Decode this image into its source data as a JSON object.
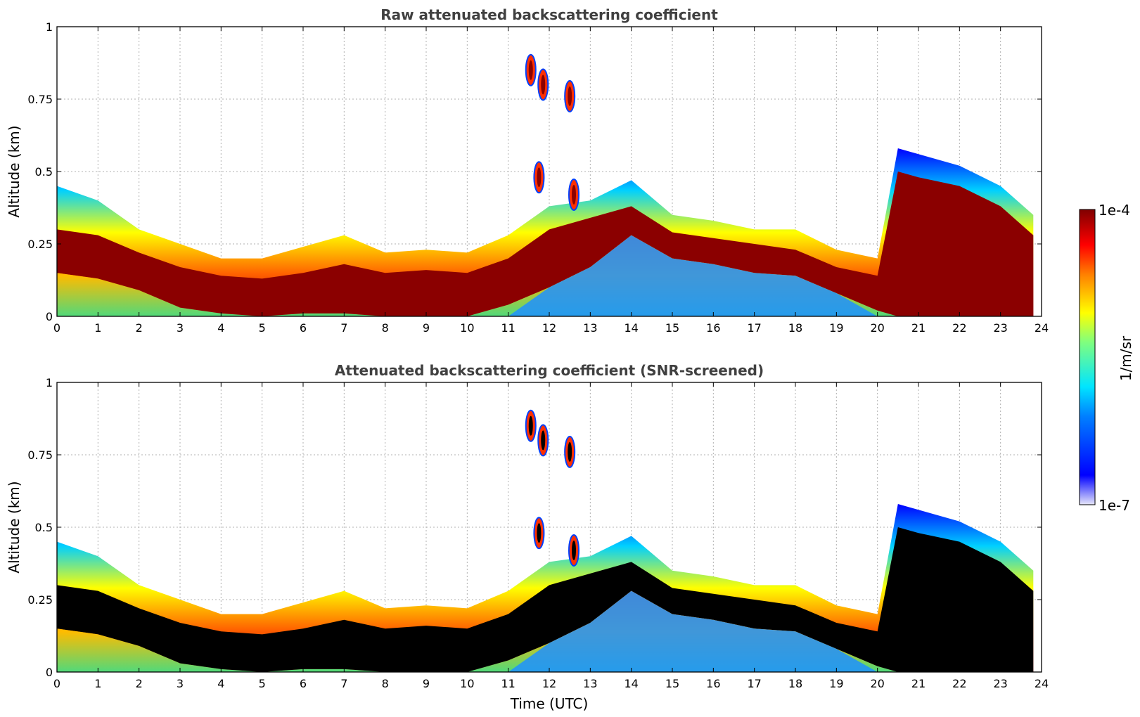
{
  "chart_data": [
    {
      "type": "heatmap",
      "title": "Raw attenuated backscattering coefficient",
      "xlabel": "",
      "ylabel": "Altitude (km)",
      "xlim": [
        0,
        24
      ],
      "ylim": [
        0,
        1
      ],
      "xticks": [
        "0",
        "1",
        "2",
        "3",
        "4",
        "5",
        "6",
        "7",
        "8",
        "9",
        "10",
        "11",
        "12",
        "13",
        "14",
        "15",
        "16",
        "17",
        "18",
        "19",
        "20",
        "21",
        "22",
        "23",
        "24"
      ],
      "yticks": [
        "0",
        "0.25",
        "0.5",
        "0.75",
        "1"
      ],
      "grid": true,
      "layers": {
        "time": [
          0,
          1,
          2,
          3,
          4,
          5,
          6,
          7,
          8,
          9,
          10,
          11,
          12,
          13,
          14,
          15,
          16,
          17,
          18,
          19,
          20,
          20.5,
          21,
          22,
          23,
          23.8
        ],
        "top_km": [
          0.45,
          0.4,
          0.3,
          0.25,
          0.2,
          0.2,
          0.24,
          0.28,
          0.22,
          0.23,
          0.22,
          0.28,
          0.38,
          0.4,
          0.47,
          0.35,
          0.33,
          0.3,
          0.3,
          0.23,
          0.2,
          0.58,
          0.56,
          0.52,
          0.45,
          0.35
        ],
        "core_top_km": [
          0.3,
          0.28,
          0.22,
          0.17,
          0.14,
          0.13,
          0.15,
          0.18,
          0.15,
          0.16,
          0.15,
          0.2,
          0.3,
          0.34,
          0.38,
          0.29,
          0.27,
          0.25,
          0.23,
          0.17,
          0.14,
          0.5,
          0.48,
          0.45,
          0.38,
          0.28
        ],
        "core_bottom_km": [
          0.15,
          0.13,
          0.09,
          0.03,
          0.01,
          0.0,
          0.01,
          0.01,
          0.0,
          0.0,
          0.0,
          0.04,
          0.1,
          0.17,
          0.28,
          0.2,
          0.18,
          0.15,
          0.14,
          0.08,
          0.02,
          0.0,
          0.0,
          0.0,
          0.0,
          0.0
        ]
      },
      "cloud_patches": [
        {
          "time": 11.55,
          "altitude_km": 0.85
        },
        {
          "time": 11.85,
          "altitude_km": 0.8
        },
        {
          "time": 12.5,
          "altitude_km": 0.76
        },
        {
          "time": 11.75,
          "altitude_km": 0.48
        },
        {
          "time": 12.6,
          "altitude_km": 0.42
        }
      ]
    },
    {
      "type": "heatmap",
      "title": "Attenuated backscattering coefficient (SNR-screened)",
      "xlabel": "Time (UTC)",
      "ylabel": "Altitude (km)",
      "xlim": [
        0,
        24
      ],
      "ylim": [
        0,
        1
      ],
      "xticks": [
        "0",
        "1",
        "2",
        "3",
        "4",
        "5",
        "6",
        "7",
        "8",
        "9",
        "10",
        "11",
        "12",
        "13",
        "14",
        "15",
        "16",
        "17",
        "18",
        "19",
        "20",
        "21",
        "22",
        "23",
        "24"
      ],
      "yticks": [
        "0",
        "0.25",
        "0.5",
        "0.75",
        "1"
      ],
      "grid": true,
      "saturated_color": "#000000"
    }
  ],
  "colorbar": {
    "label": "1/m/sr",
    "max_label": "1e-4",
    "min_label": "1e-7",
    "colors": [
      "#e6e6fa",
      "#0000ff",
      "#00e5ff",
      "#7fff7f",
      "#ffff00",
      "#ff7f00",
      "#ff0000",
      "#800000"
    ]
  }
}
